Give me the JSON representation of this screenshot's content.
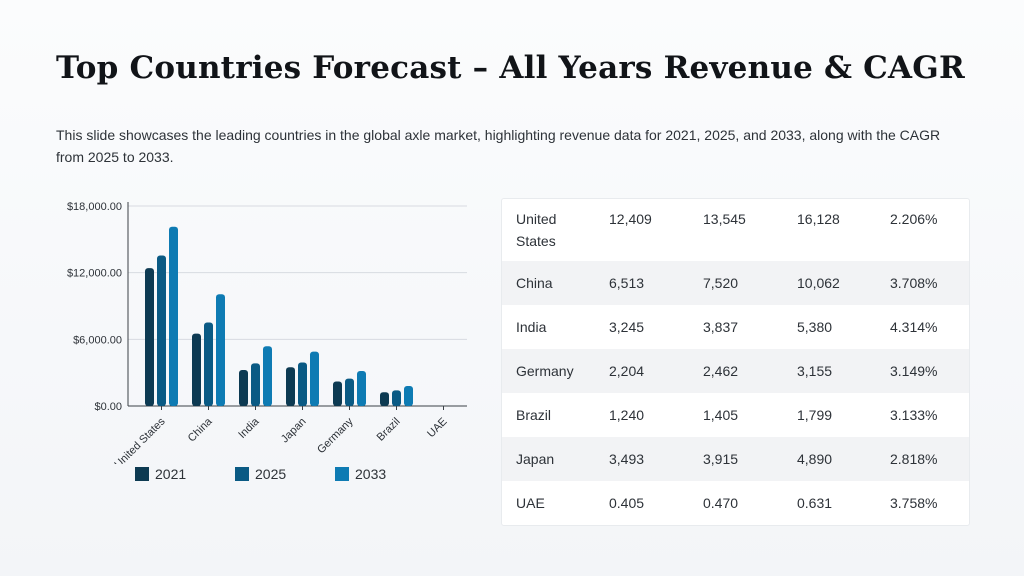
{
  "title": "Top Countries Forecast – All Years Revenue & CAGR",
  "subtitle": "This slide showcases the leading countries in the global axle market, highlighting revenue data for 2021, 2025, and 2033, along with the CAGR from 2025 to 2033.",
  "colors": {
    "series_2021": "#0d3a52",
    "series_2025": "#0a5a84",
    "series_2033": "#0e7bb3",
    "grid": "#d7dbe0",
    "axis": "#3b4046"
  },
  "chart_data": {
    "type": "bar",
    "categories": [
      "United States",
      "China",
      "India",
      "Japan",
      "Germany",
      "Brazil",
      "UAE"
    ],
    "series": [
      {
        "name": "2021",
        "values": [
          12409,
          6513,
          3245,
          3493,
          2204,
          1240,
          0.405
        ]
      },
      {
        "name": "2025",
        "values": [
          13545,
          7520,
          3837,
          3915,
          2462,
          1405,
          0.47
        ]
      },
      {
        "name": "2033",
        "values": [
          16128,
          10062,
          5380,
          4890,
          3155,
          1799,
          0.631
        ]
      }
    ],
    "y_ticks": [
      "$0.00",
      "$6,000.00",
      "$12,000.00",
      "$18,000.00"
    ],
    "ylim": [
      0,
      18000
    ],
    "grid": true,
    "legend": "bottom"
  },
  "table": {
    "rows": [
      [
        "United States",
        "12,409",
        "13,545",
        "16,128",
        "2.206%"
      ],
      [
        "China",
        "6,513",
        "7,520",
        "10,062",
        "3.708%"
      ],
      [
        "India",
        "3,245",
        "3,837",
        "5,380",
        "4.314%"
      ],
      [
        "Germany",
        "2,204",
        "2,462",
        "3,155",
        "3.149%"
      ],
      [
        "Brazil",
        "1,240",
        "1,405",
        "1,799",
        "3.133%"
      ],
      [
        "Japan",
        "3,493",
        "3,915",
        "4,890",
        "2.818%"
      ],
      [
        "UAE",
        "0.405",
        "0.470",
        "0.631",
        "3.758%"
      ]
    ]
  }
}
